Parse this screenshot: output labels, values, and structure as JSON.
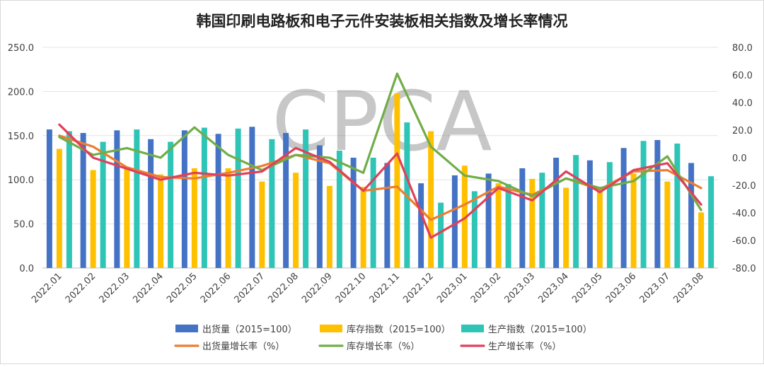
{
  "chart_data": {
    "type": "bar+line",
    "title": "韩国印刷电路板和电子元件安装板相关指数及增长率情况",
    "watermark": "CPCA",
    "categories": [
      "2022.01",
      "2022.02",
      "2022.03",
      "2022.04",
      "2022.05",
      "2022.06",
      "2022.07",
      "2022.08",
      "2022.09",
      "2022.10",
      "2022.11",
      "2022.12",
      "2023.01",
      "2023.02",
      "2023.03",
      "2023.04",
      "2023.05",
      "2023.06",
      "2023.07",
      "2023.08"
    ],
    "left_axis": {
      "ylim": [
        0,
        250
      ],
      "ticks": [
        "0.0",
        "50.0",
        "100.0",
        "150.0",
        "200.0",
        "250.0"
      ]
    },
    "right_axis": {
      "ylim": [
        -80,
        80
      ],
      "ticks": [
        "-80.0",
        "-60.0",
        "-40.0",
        "-20.0",
        "0.0",
        "20.0",
        "40.0",
        "60.0",
        "80.0"
      ]
    },
    "bar_series": [
      {
        "name": "出货量（2015=100）",
        "color": "#4472C4",
        "values": [
          157,
          153,
          156,
          146,
          156,
          152,
          160,
          153,
          139,
          125,
          119,
          96,
          105,
          107,
          113,
          125,
          122,
          136,
          145,
          119
        ]
      },
      {
        "name": "库存指数（2015=100）",
        "color": "#FFC000",
        "values": [
          135,
          111,
          114,
          106,
          113,
          113,
          98,
          108,
          93,
          92,
          198,
          155,
          116,
          96,
          101,
          91,
          87,
          107,
          98,
          63
        ]
      },
      {
        "name": "生产指数（2015=100）",
        "color": "#2EC4B6",
        "values": [
          155,
          143,
          157,
          143,
          159,
          158,
          146,
          157,
          133,
          125,
          165,
          74,
          87,
          95,
          108,
          128,
          120,
          144,
          141,
          104
        ]
      }
    ],
    "line_series": [
      {
        "name": "出货量增长率（%）",
        "color": "#ED7D31",
        "values": [
          16,
          8,
          -7,
          -14,
          -15,
          -11,
          -6,
          2,
          -4,
          -24,
          -21,
          -45,
          -34,
          -21,
          -27,
          -15,
          -23,
          -10,
          -9,
          -22
        ]
      },
      {
        "name": "库存增长率（%）",
        "color": "#70AD47",
        "values": [
          15,
          2,
          7,
          0,
          22,
          2,
          -9,
          2,
          0,
          -11,
          61,
          8,
          -13,
          -17,
          -28,
          -15,
          -22,
          -17,
          1,
          -38
        ]
      },
      {
        "name": "生产增长率（%）",
        "color": "#E0405A",
        "values": [
          24,
          0,
          -8,
          -16,
          -11,
          -13,
          -10,
          7,
          -3,
          -24,
          3,
          -58,
          -44,
          -22,
          -31,
          -10,
          -25,
          -9,
          -4,
          -34
        ]
      }
    ]
  }
}
